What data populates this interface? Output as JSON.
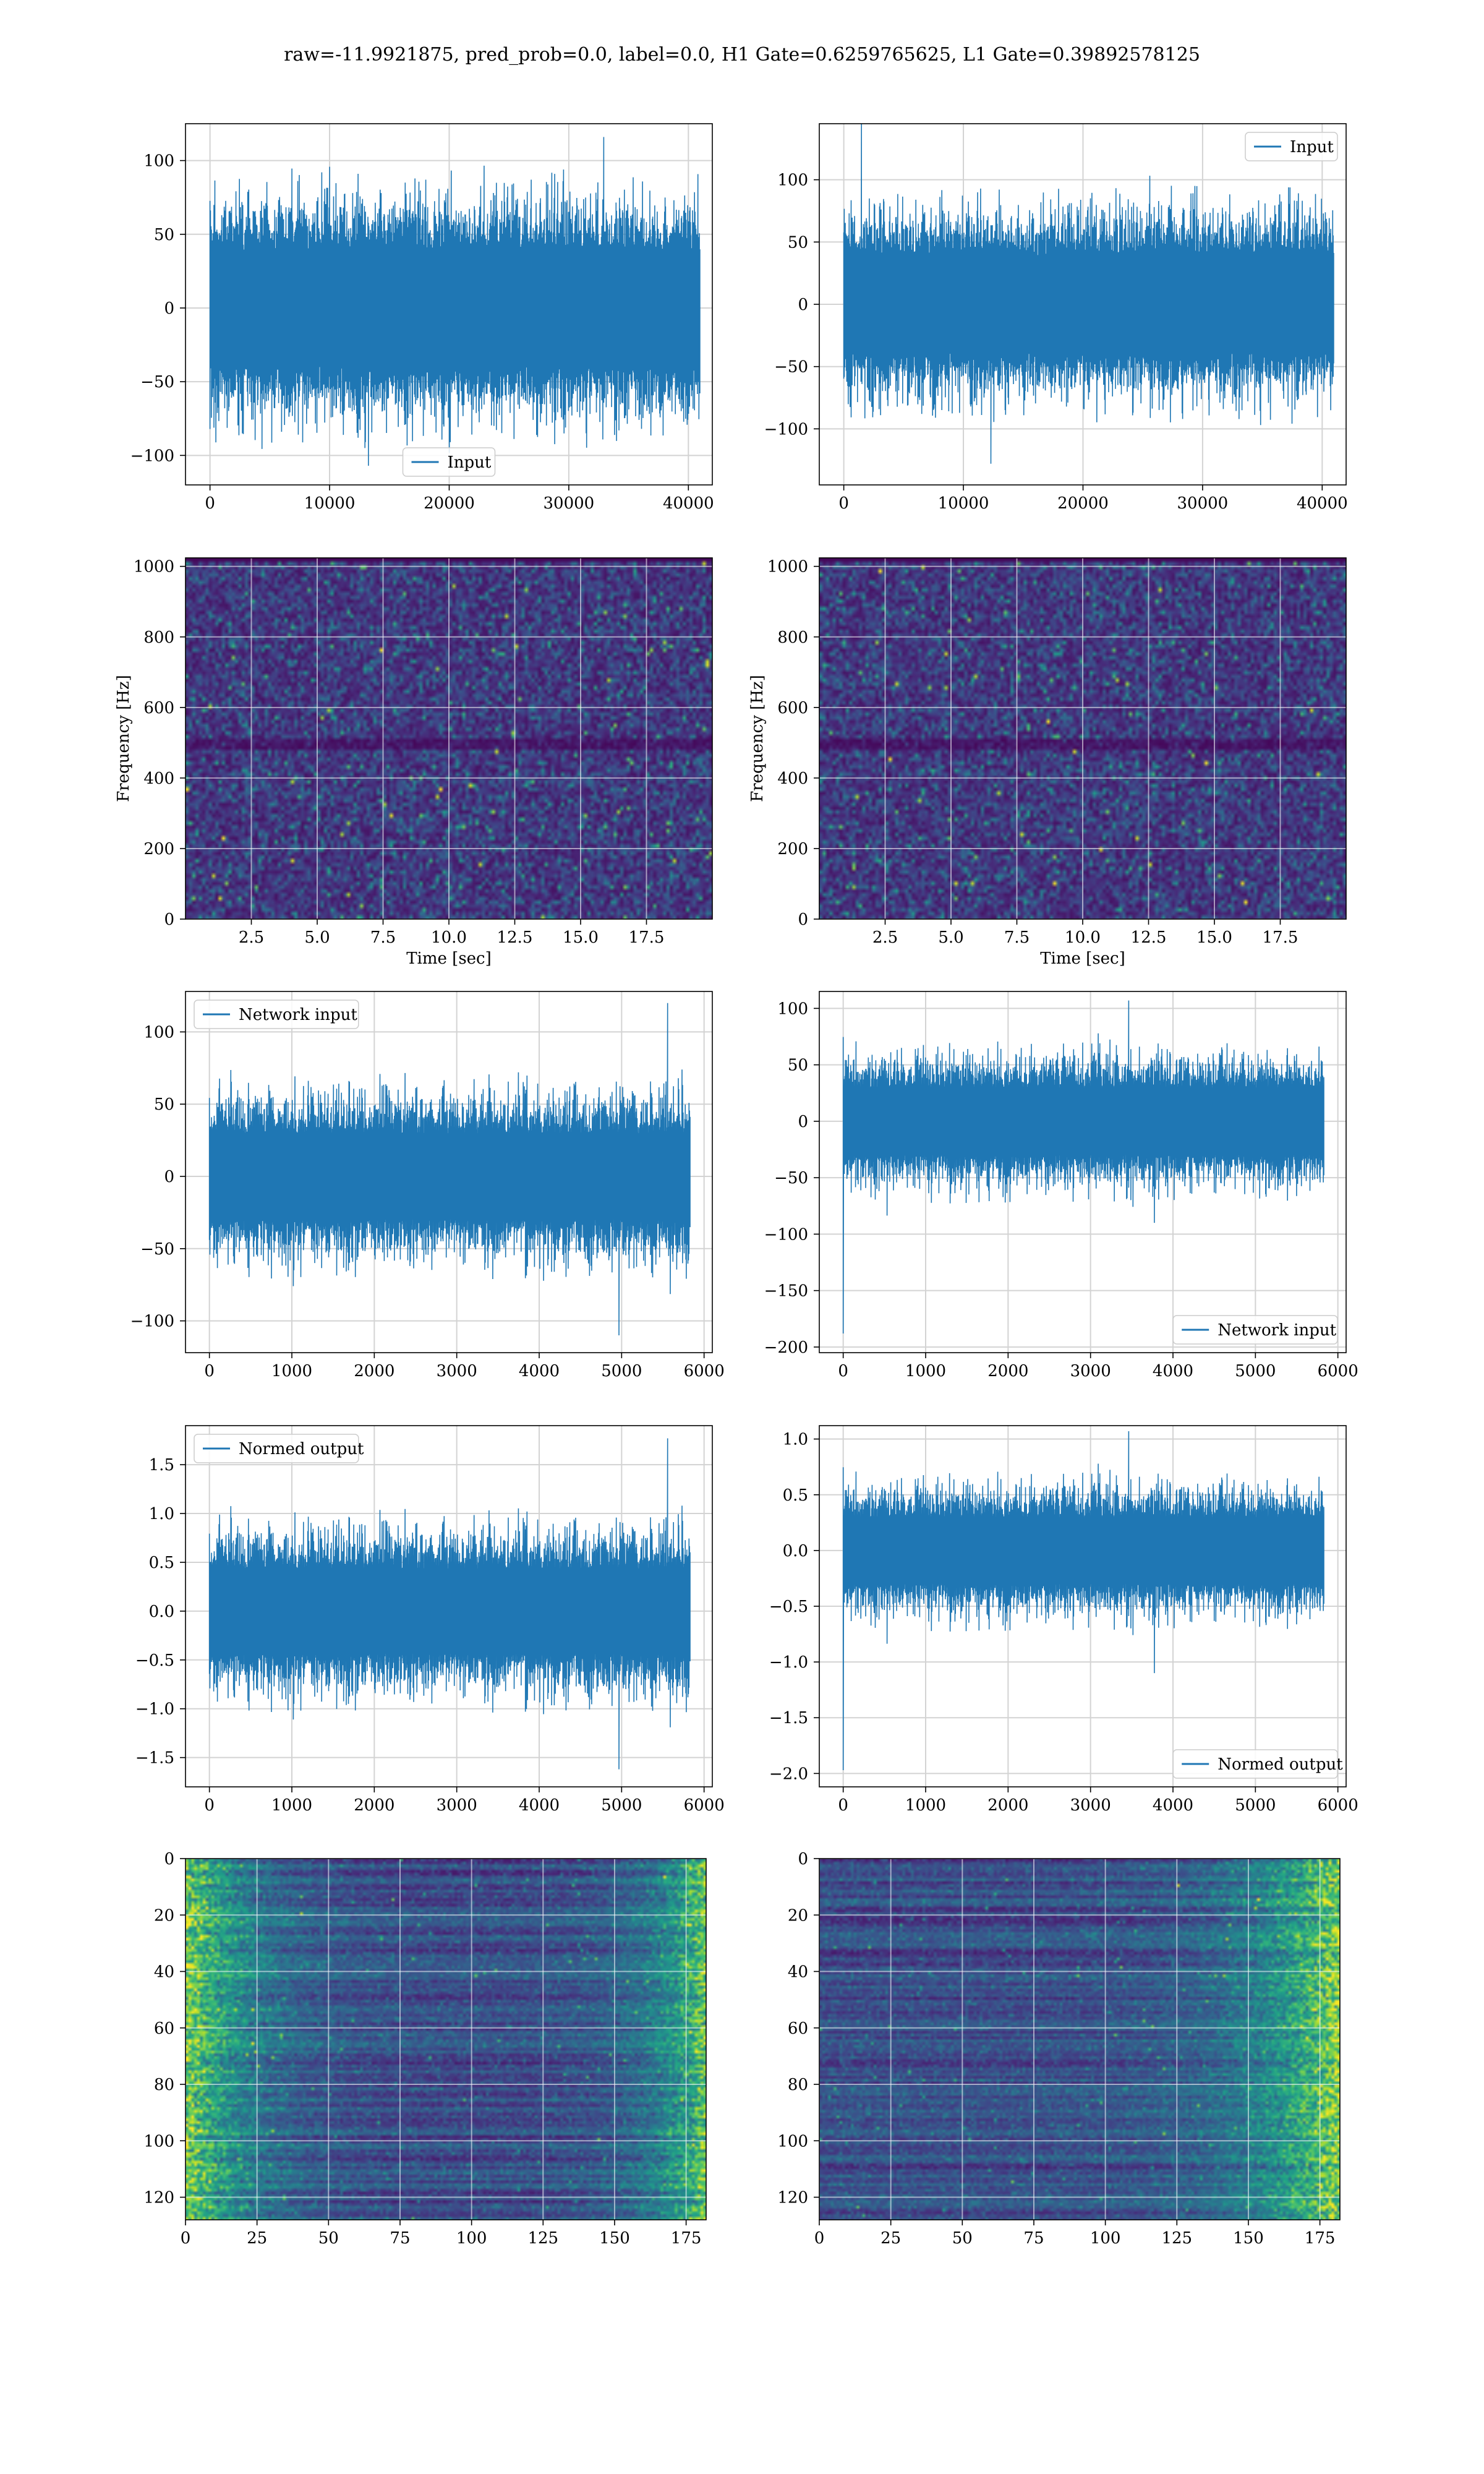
{
  "figure": {
    "title": "raw=-11.9921875, pred_prob=0.0, label=0.0, H1 Gate=0.6259765625, L1 Gate=0.39892578125"
  },
  "colors": {
    "line": "#1f77b4",
    "grid": "#d3d3d3",
    "viridis": [
      "#440154",
      "#482878",
      "#3e4989",
      "#31688e",
      "#26828e",
      "#1f9e89",
      "#35b779",
      "#6ece58",
      "#b5de2b",
      "#fde725"
    ]
  },
  "chart_data": [
    {
      "id": "ax1",
      "type": "line",
      "legend": "Input",
      "legend_loc": "lower center",
      "xlim": [
        -2048,
        42000
      ],
      "ylim": [
        -120,
        125
      ],
      "xticks": [
        0,
        10000,
        20000,
        30000,
        40000
      ],
      "yticks": [
        -100,
        -50,
        0,
        50,
        100
      ],
      "signal": {
        "x_start": 0,
        "x_end": 40960,
        "n": 1000,
        "amp": 34,
        "peak_hi": 116,
        "peak_lo": -107,
        "seed": 11
      }
    },
    {
      "id": "ax2",
      "type": "line",
      "legend": "Input",
      "legend_loc": "upper right",
      "xlim": [
        -2048,
        42000
      ],
      "ylim": [
        -145,
        145
      ],
      "xticks": [
        0,
        10000,
        20000,
        30000,
        40000
      ],
      "yticks": [
        -100,
        -50,
        0,
        50,
        100
      ],
      "signal": {
        "x_start": 0,
        "x_end": 40960,
        "n": 1000,
        "amp": 34,
        "peak_hi": 146,
        "peak_lo": -128,
        "seed": 23
      }
    },
    {
      "id": "ax3",
      "type": "heatmap",
      "xlabel": "Time [sec]",
      "ylabel": "Frequency [Hz]",
      "xlim": [
        0,
        20
      ],
      "ylim": [
        0,
        1024
      ],
      "xticks": [
        "2.5",
        "5.0",
        "7.5",
        "10.0",
        "12.5",
        "15.0",
        "17.5"
      ],
      "yticks": [
        "0",
        "200",
        "400",
        "600",
        "800",
        "1000"
      ],
      "grid": {
        "cols": 160,
        "rows": 96,
        "seed": 31,
        "line_hz": 500
      }
    },
    {
      "id": "ax4",
      "type": "heatmap",
      "xlabel": "Time [sec]",
      "ylabel": "Frequency [Hz]",
      "xlim": [
        0,
        20
      ],
      "ylim": [
        0,
        1024
      ],
      "xticks": [
        "2.5",
        "5.0",
        "7.5",
        "10.0",
        "12.5",
        "15.0",
        "17.5"
      ],
      "yticks": [
        "0",
        "200",
        "400",
        "600",
        "800",
        "1000"
      ],
      "grid": {
        "cols": 160,
        "rows": 96,
        "seed": 47,
        "line_hz": 500
      }
    },
    {
      "id": "ax5",
      "type": "line",
      "legend": "Network input",
      "legend_loc": "upper left",
      "xlim": [
        -290,
        6100
      ],
      "ylim": [
        -122,
        128
      ],
      "xticks": [
        0,
        1000,
        2000,
        3000,
        4000,
        5000,
        6000
      ],
      "yticks": [
        -100,
        -50,
        0,
        50,
        100
      ],
      "signal": {
        "x_start": 0,
        "x_end": 5830,
        "n": 900,
        "amp": 26,
        "peak_hi": 120,
        "peak_lo": -110,
        "seed": 53
      }
    },
    {
      "id": "ax6",
      "type": "line",
      "legend": "Network input",
      "legend_loc": "lower right",
      "xlim": [
        -290,
        6100
      ],
      "ylim": [
        -205,
        115
      ],
      "xticks": [
        0,
        1000,
        2000,
        3000,
        4000,
        5000,
        6000
      ],
      "yticks": [
        -200,
        -150,
        -100,
        -50,
        0,
        50,
        100
      ],
      "signal": {
        "x_start": 0,
        "x_end": 5830,
        "n": 900,
        "amp": 26,
        "peak_hi": 107,
        "peak_lo": -90,
        "first_spike": -188,
        "seed": 67
      }
    },
    {
      "id": "ax7",
      "type": "line",
      "legend": "Normed output",
      "legend_loc": "upper left",
      "xlim": [
        -290,
        6100
      ],
      "ylim": [
        -1.8,
        1.9
      ],
      "xticks": [
        0,
        1000,
        2000,
        3000,
        4000,
        5000,
        6000
      ],
      "yticks": [
        -1.5,
        -1.0,
        -0.5,
        0.0,
        0.5,
        1.0,
        1.5
      ],
      "yfmt": 1,
      "signal": {
        "x_start": 0,
        "x_end": 5830,
        "n": 900,
        "amp": 0.38,
        "peak_hi": 1.77,
        "peak_lo": -1.62,
        "seed": 53
      }
    },
    {
      "id": "ax8",
      "type": "line",
      "legend": "Normed output",
      "legend_loc": "lower right",
      "xlim": [
        -290,
        6100
      ],
      "ylim": [
        -2.12,
        1.12
      ],
      "xticks": [
        0,
        1000,
        2000,
        3000,
        4000,
        5000,
        6000
      ],
      "yticks": [
        -2.0,
        -1.5,
        -1.0,
        -0.5,
        0.0,
        0.5,
        1.0
      ],
      "yfmt": 1,
      "signal": {
        "x_start": 0,
        "x_end": 5830,
        "n": 900,
        "amp": 0.26,
        "peak_hi": 1.07,
        "peak_lo": -1.1,
        "first_spike": -1.97,
        "seed": 67
      }
    },
    {
      "id": "ax9",
      "type": "heatmap",
      "xlim": [
        0,
        182
      ],
      "ylim": [
        128,
        0
      ],
      "xticks": [
        "0",
        "25",
        "50",
        "75",
        "100",
        "125",
        "150",
        "175"
      ],
      "yticks": [
        "0",
        "20",
        "40",
        "60",
        "80",
        "100",
        "120"
      ],
      "grid": {
        "cols": 182,
        "rows": 128,
        "seed": 71,
        "streaky": true,
        "bright_side": "both"
      }
    },
    {
      "id": "ax10",
      "type": "heatmap",
      "xlim": [
        0,
        182
      ],
      "ylim": [
        128,
        0
      ],
      "xticks": [
        "0",
        "25",
        "50",
        "75",
        "100",
        "125",
        "150",
        "175"
      ],
      "yticks": [
        "0",
        "20",
        "40",
        "60",
        "80",
        "100",
        "120"
      ],
      "grid": {
        "cols": 182,
        "rows": 128,
        "seed": 89,
        "streaky": true,
        "bright_side": "right"
      }
    }
  ]
}
